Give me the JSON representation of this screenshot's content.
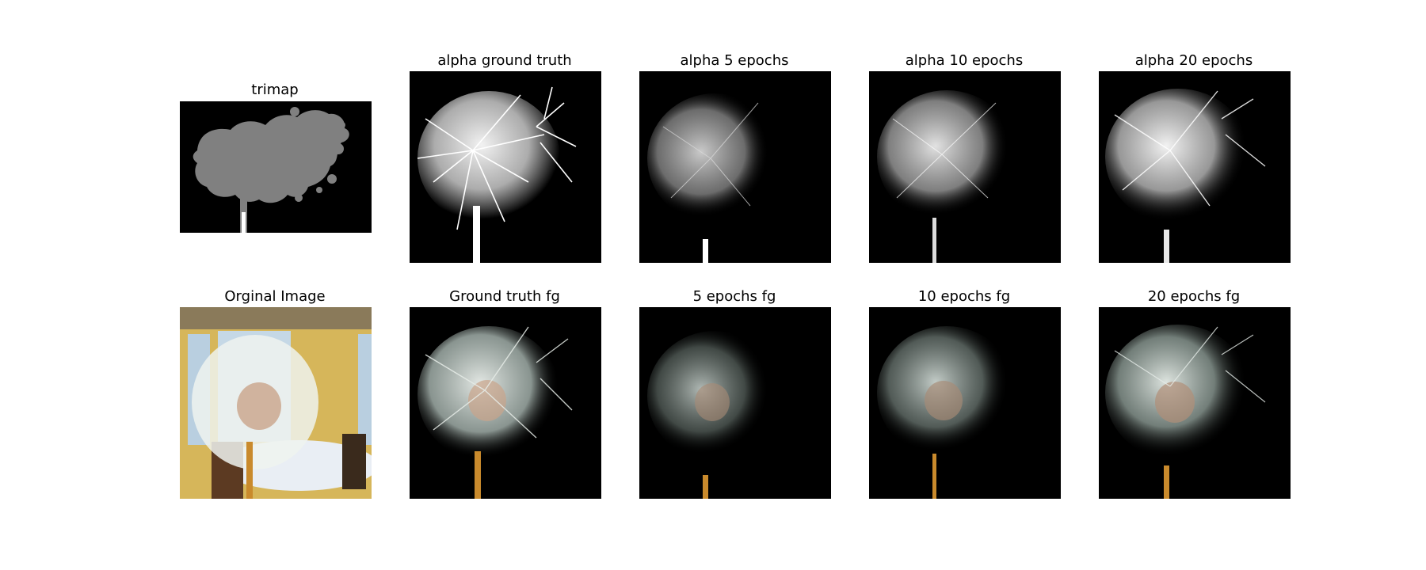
{
  "figure": {
    "titles": {
      "trimap": "trimap",
      "alpha_gt": "alpha ground truth",
      "alpha_5": "alpha 5 epochs",
      "alpha_10": "alpha 10 epochs",
      "alpha_20": "alpha 20 epochs",
      "original": "Orginal Image",
      "fg_gt": "Ground truth fg",
      "fg_5": "5 epochs fg",
      "fg_10": "10 epochs fg",
      "fg_20": "20 epochs fg"
    },
    "colors": {
      "background": "#000000",
      "trimap_unknown": "#808080",
      "trimap_fg": "#ffffff",
      "alpha": "#ffffff",
      "fg_tint": "#dfe8e2",
      "fg_core": "#c9a48a",
      "stem": "#c98a2c",
      "wall": "#d6b65a",
      "window": "#b9cfe0",
      "table": "#e9eef4"
    }
  }
}
